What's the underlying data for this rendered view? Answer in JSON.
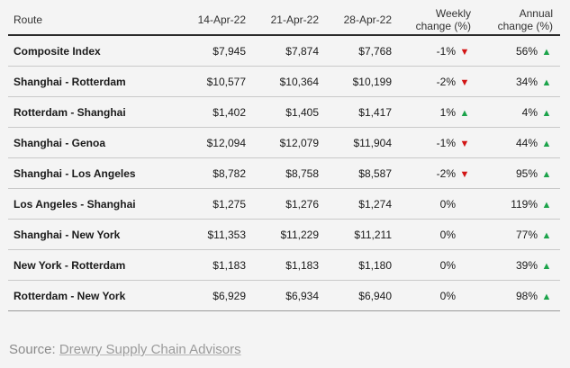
{
  "table": {
    "headers": {
      "route": "Route",
      "d1": "14-Apr-22",
      "d2": "21-Apr-22",
      "d3": "28-Apr-22",
      "weekly_line1": "Weekly",
      "weekly_line2": "change (%)",
      "annual_line1": "Annual",
      "annual_line2": "change (%)"
    },
    "rows": [
      {
        "route": "Composite Index",
        "d1": "$7,945",
        "d2": "$7,874",
        "d3": "$7,768",
        "weekly": "-1%",
        "weekly_dir": "down",
        "annual": "56%",
        "annual_dir": "up"
      },
      {
        "route": "Shanghai - Rotterdam",
        "d1": "$10,577",
        "d2": "$10,364",
        "d3": "$10,199",
        "weekly": "-2%",
        "weekly_dir": "down",
        "annual": "34%",
        "annual_dir": "up"
      },
      {
        "route": "Rotterdam - Shanghai",
        "d1": "$1,402",
        "d2": "$1,405",
        "d3": "$1,417",
        "weekly": "1%",
        "weekly_dir": "up",
        "annual": "4%",
        "annual_dir": "up"
      },
      {
        "route": "Shanghai - Genoa",
        "d1": "$12,094",
        "d2": "$12,079",
        "d3": "$11,904",
        "weekly": "-1%",
        "weekly_dir": "down",
        "annual": "44%",
        "annual_dir": "up"
      },
      {
        "route": "Shanghai - Los Angeles",
        "d1": "$8,782",
        "d2": "$8,758",
        "d3": "$8,587",
        "weekly": "-2%",
        "weekly_dir": "down",
        "annual": "95%",
        "annual_dir": "up"
      },
      {
        "route": "Los Angeles - Shanghai",
        "d1": "$1,275",
        "d2": "$1,276",
        "d3": "$1,274",
        "weekly": "0%",
        "weekly_dir": "none",
        "annual": "119%",
        "annual_dir": "up"
      },
      {
        "route": "Shanghai - New York",
        "d1": "$11,353",
        "d2": "$11,229",
        "d3": "$11,211",
        "weekly": "0%",
        "weekly_dir": "none",
        "annual": "77%",
        "annual_dir": "up"
      },
      {
        "route": "New York - Rotterdam",
        "d1": "$1,183",
        "d2": "$1,183",
        "d3": "$1,180",
        "weekly": "0%",
        "weekly_dir": "none",
        "annual": "39%",
        "annual_dir": "up"
      },
      {
        "route": "Rotterdam - New York",
        "d1": "$6,929",
        "d2": "$6,934",
        "d3": "$6,940",
        "weekly": "0%",
        "weekly_dir": "none",
        "annual": "98%",
        "annual_dir": "up"
      }
    ]
  },
  "source": {
    "label": "Source:",
    "link_text": "Drewry Supply Chain Advisors"
  },
  "colors": {
    "down": "#d21414",
    "up": "#1ba34a"
  },
  "icons": {
    "up": "triangle-up-icon",
    "down": "triangle-down-icon"
  }
}
